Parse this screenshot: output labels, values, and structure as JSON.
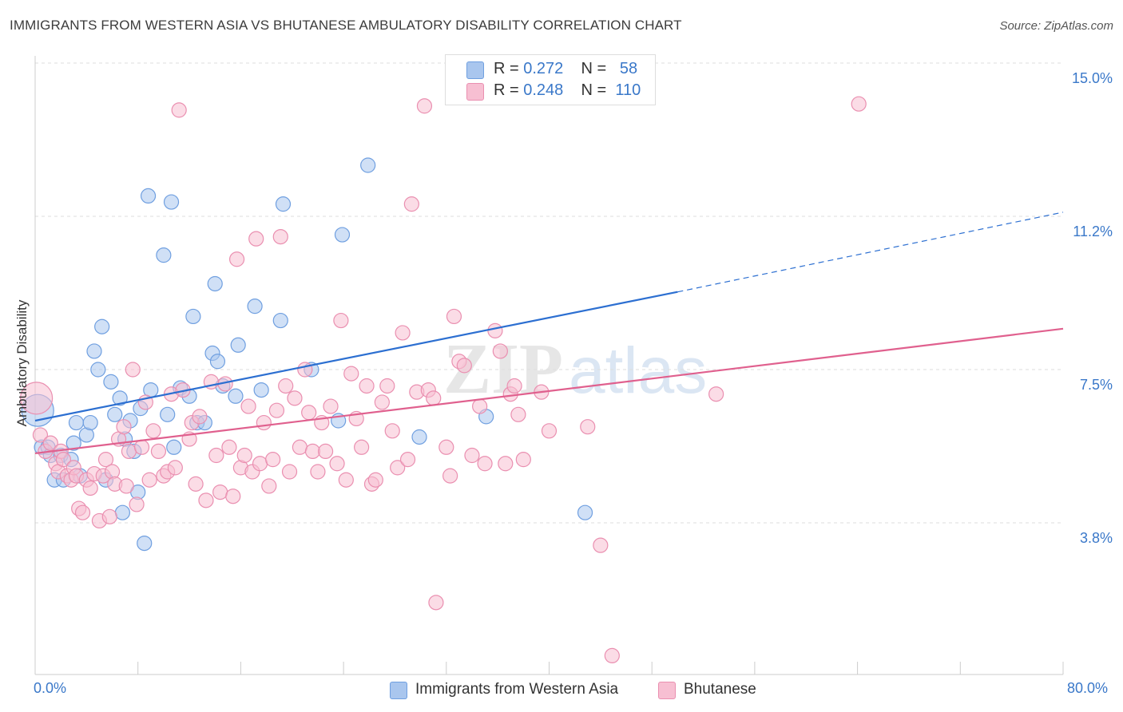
{
  "title": "IMMIGRANTS FROM WESTERN ASIA VS BHUTANESE AMBULATORY DISABILITY CORRELATION CHART",
  "source": "Source: ZipAtlas.com",
  "watermark": "ZIPatlas",
  "legend": {
    "rows": [
      {
        "r_label": "R =",
        "r_value": "0.272",
        "n_label": "N =",
        "n_value": "58",
        "color": "#a9c6ee",
        "border": "#6f9fe0"
      },
      {
        "r_label": "R =",
        "r_value": "0.248",
        "n_label": "N =",
        "n_value": "110",
        "color": "#f7bfd2",
        "border": "#ea8fb0"
      }
    ]
  },
  "bottom_legend": [
    {
      "label": "Immigrants from Western Asia",
      "color": "#a9c6ee",
      "border": "#6f9fe0"
    },
    {
      "label": "Bhutanese",
      "color": "#f7bfd2",
      "border": "#ea8fb0"
    }
  ],
  "axis": {
    "ylabel": "Ambulatory Disability",
    "x_min_label": "0.0%",
    "x_max_label": "80.0%",
    "y_tick_labels": [
      "15.0%",
      "11.2%",
      "7.5%",
      "3.8%"
    ]
  },
  "chart_data": {
    "type": "scatter",
    "title": "IMMIGRANTS FROM WESTERN ASIA VS BHUTANESE AMBULATORY DISABILITY CORRELATION CHART",
    "xlabel": "",
    "ylabel": "Ambulatory Disability",
    "xlim": [
      0,
      80
    ],
    "ylim": [
      0,
      15.5
    ],
    "y_ticks": [
      15.0,
      11.25,
      7.5,
      3.75
    ],
    "y_tick_labels": [
      "15.0%",
      "11.2%",
      "7.5%",
      "3.8%"
    ],
    "x_ticks": [
      0,
      8,
      16,
      24,
      32,
      40,
      48,
      56,
      64,
      72,
      80
    ],
    "grid": true,
    "legend_position": "top-center",
    "series": [
      {
        "name": "Immigrants from Western Asia",
        "color": "#6f9fe0",
        "fill": "#a9c6ee",
        "trend": {
          "x0": 0,
          "y0": 6.25,
          "x1": 50,
          "y1": 9.4,
          "dashed_to_x": 80,
          "dashed_to_y": 11.35,
          "color": "#2c6fd1"
        },
        "points": [
          [
            0.2,
            6.5,
            20
          ],
          [
            0.5,
            5.6,
            9
          ],
          [
            1.0,
            5.6,
            9
          ],
          [
            1.2,
            5.4,
            9
          ],
          [
            1.5,
            4.8,
            9
          ],
          [
            2.0,
            5.4,
            9
          ],
          [
            2.2,
            4.8,
            9
          ],
          [
            2.8,
            5.3,
            9
          ],
          [
            3.0,
            5.7,
            9
          ],
          [
            3.2,
            6.2,
            9
          ],
          [
            3.5,
            4.9,
            9
          ],
          [
            4.0,
            5.9,
            9
          ],
          [
            4.3,
            6.2,
            9
          ],
          [
            4.6,
            7.95,
            9
          ],
          [
            4.9,
            7.5,
            9
          ],
          [
            5.2,
            8.55,
            9
          ],
          [
            5.5,
            4.8,
            9
          ],
          [
            5.9,
            7.2,
            9
          ],
          [
            6.2,
            6.4,
            9
          ],
          [
            6.6,
            6.8,
            9
          ],
          [
            6.8,
            4.0,
            9
          ],
          [
            7.0,
            5.8,
            9
          ],
          [
            7.4,
            6.25,
            9
          ],
          [
            7.7,
            5.5,
            9
          ],
          [
            8.0,
            4.5,
            9
          ],
          [
            8.2,
            6.55,
            9
          ],
          [
            8.5,
            3.25,
            9
          ],
          [
            8.8,
            11.75,
            9
          ],
          [
            9.0,
            7.0,
            9
          ],
          [
            10.0,
            10.3,
            9
          ],
          [
            10.3,
            6.4,
            9
          ],
          [
            10.6,
            11.6,
            9
          ],
          [
            10.8,
            5.6,
            9
          ],
          [
            11.3,
            7.05,
            9
          ],
          [
            12.0,
            6.85,
            9
          ],
          [
            12.3,
            8.8,
            9
          ],
          [
            12.6,
            6.2,
            9
          ],
          [
            13.2,
            6.2,
            9
          ],
          [
            13.8,
            7.9,
            9
          ],
          [
            14.0,
            9.6,
            9
          ],
          [
            14.2,
            7.7,
            9
          ],
          [
            14.6,
            7.1,
            9
          ],
          [
            15.6,
            6.85,
            9
          ],
          [
            15.8,
            8.1,
            9
          ],
          [
            17.1,
            9.05,
            9
          ],
          [
            17.6,
            7.0,
            9
          ],
          [
            19.1,
            8.7,
            9
          ],
          [
            19.3,
            11.55,
            9
          ],
          [
            21.5,
            7.5,
            9
          ],
          [
            23.6,
            6.25,
            9
          ],
          [
            23.9,
            10.8,
            9
          ],
          [
            25.9,
            12.5,
            9
          ],
          [
            29.9,
            5.85,
            9
          ],
          [
            35.1,
            6.35,
            9
          ],
          [
            42.8,
            4.0,
            9
          ]
        ]
      },
      {
        "name": "Bhutanese",
        "color": "#ea8fb0",
        "fill": "#f7bfd2",
        "trend": {
          "x0": 0,
          "y0": 5.45,
          "x1": 80,
          "y1": 8.5,
          "color": "#e0608e"
        },
        "points": [
          [
            0.1,
            6.8,
            20
          ],
          [
            0.4,
            5.9,
            9
          ],
          [
            0.8,
            5.5,
            9
          ],
          [
            1.2,
            5.7,
            9
          ],
          [
            1.6,
            5.2,
            9
          ],
          [
            1.8,
            5.0,
            9
          ],
          [
            2.0,
            5.5,
            9
          ],
          [
            2.2,
            5.3,
            9
          ],
          [
            2.5,
            4.9,
            9
          ],
          [
            2.8,
            4.8,
            9
          ],
          [
            3.0,
            5.1,
            9
          ],
          [
            3.2,
            4.9,
            9
          ],
          [
            3.4,
            4.1,
            9
          ],
          [
            3.7,
            4.0,
            9
          ],
          [
            4.0,
            4.8,
            9
          ],
          [
            4.3,
            4.6,
            9
          ],
          [
            4.6,
            4.95,
            9
          ],
          [
            5.0,
            3.8,
            9
          ],
          [
            5.3,
            4.9,
            9
          ],
          [
            5.5,
            5.3,
            9
          ],
          [
            5.8,
            3.9,
            9
          ],
          [
            6.0,
            5.0,
            9
          ],
          [
            6.2,
            4.7,
            9
          ],
          [
            6.5,
            5.8,
            9
          ],
          [
            6.9,
            6.1,
            9
          ],
          [
            7.1,
            4.65,
            9
          ],
          [
            7.3,
            5.5,
            9
          ],
          [
            7.6,
            7.5,
            9
          ],
          [
            7.9,
            4.2,
            9
          ],
          [
            8.3,
            5.6,
            9
          ],
          [
            8.6,
            6.7,
            9
          ],
          [
            8.9,
            4.8,
            9
          ],
          [
            9.2,
            6.0,
            9
          ],
          [
            9.6,
            5.5,
            9
          ],
          [
            10.0,
            4.9,
            9
          ],
          [
            10.3,
            5.0,
            9
          ],
          [
            10.6,
            6.9,
            9
          ],
          [
            10.9,
            5.1,
            9
          ],
          [
            11.2,
            13.85,
            9
          ],
          [
            11.5,
            7.0,
            9
          ],
          [
            12.0,
            5.8,
            9
          ],
          [
            12.2,
            6.2,
            9
          ],
          [
            12.5,
            4.7,
            9
          ],
          [
            12.8,
            6.35,
            9
          ],
          [
            13.3,
            4.3,
            9
          ],
          [
            13.7,
            7.2,
            9
          ],
          [
            14.1,
            5.4,
            9
          ],
          [
            14.4,
            4.5,
            9
          ],
          [
            14.8,
            7.15,
            9
          ],
          [
            15.1,
            5.6,
            9
          ],
          [
            15.4,
            4.4,
            9
          ],
          [
            15.7,
            10.2,
            9
          ],
          [
            16.0,
            5.1,
            9
          ],
          [
            16.3,
            5.4,
            9
          ],
          [
            16.6,
            6.6,
            9
          ],
          [
            16.9,
            5.0,
            9
          ],
          [
            17.2,
            10.7,
            9
          ],
          [
            17.5,
            5.2,
            9
          ],
          [
            17.8,
            6.2,
            9
          ],
          [
            18.2,
            4.65,
            9
          ],
          [
            18.5,
            5.3,
            9
          ],
          [
            18.8,
            6.5,
            9
          ],
          [
            19.1,
            10.75,
            9
          ],
          [
            19.5,
            7.1,
            9
          ],
          [
            19.8,
            5.0,
            9
          ],
          [
            20.2,
            6.8,
            9
          ],
          [
            20.6,
            5.6,
            9
          ],
          [
            21.0,
            7.5,
            9
          ],
          [
            21.3,
            6.45,
            9
          ],
          [
            21.6,
            5.5,
            9
          ],
          [
            22.0,
            5.0,
            9
          ],
          [
            22.3,
            6.2,
            9
          ],
          [
            22.6,
            5.5,
            9
          ],
          [
            23.0,
            6.6,
            9
          ],
          [
            23.5,
            5.2,
            9
          ],
          [
            23.8,
            8.7,
            9
          ],
          [
            24.2,
            4.8,
            9
          ],
          [
            24.6,
            7.4,
            9
          ],
          [
            25.0,
            6.3,
            9
          ],
          [
            25.4,
            5.6,
            9
          ],
          [
            25.8,
            7.1,
            9
          ],
          [
            26.2,
            4.7,
            9
          ],
          [
            26.5,
            4.8,
            9
          ],
          [
            27.0,
            6.7,
            9
          ],
          [
            27.4,
            7.1,
            9
          ],
          [
            27.8,
            6.0,
            9
          ],
          [
            28.2,
            5.1,
            9
          ],
          [
            28.6,
            8.4,
            9
          ],
          [
            29.0,
            5.3,
            9
          ],
          [
            29.3,
            11.55,
            9
          ],
          [
            29.7,
            6.95,
            9
          ],
          [
            30.3,
            13.95,
            9
          ],
          [
            30.6,
            7.0,
            9
          ],
          [
            31.0,
            6.8,
            9
          ],
          [
            31.2,
            1.8,
            9
          ],
          [
            32.0,
            5.6,
            9
          ],
          [
            32.3,
            4.9,
            9
          ],
          [
            32.6,
            8.8,
            9
          ],
          [
            33.0,
            7.7,
            9
          ],
          [
            33.4,
            7.6,
            9
          ],
          [
            34.0,
            5.4,
            9
          ],
          [
            34.6,
            6.6,
            9
          ],
          [
            35.0,
            5.2,
            9
          ],
          [
            35.8,
            8.45,
            9
          ],
          [
            36.2,
            7.95,
            9
          ],
          [
            36.6,
            5.2,
            9
          ],
          [
            37.0,
            6.9,
            9
          ],
          [
            37.3,
            7.1,
            9
          ],
          [
            37.6,
            6.4,
            9
          ],
          [
            38.0,
            5.3,
            9
          ],
          [
            39.4,
            6.95,
            9
          ],
          [
            40.0,
            6.0,
            9
          ],
          [
            43.0,
            6.1,
            9
          ],
          [
            44.0,
            3.2,
            9
          ],
          [
            44.9,
            0.5,
            9
          ],
          [
            53.0,
            6.9,
            9
          ],
          [
            64.1,
            14.0,
            9
          ]
        ]
      }
    ]
  }
}
